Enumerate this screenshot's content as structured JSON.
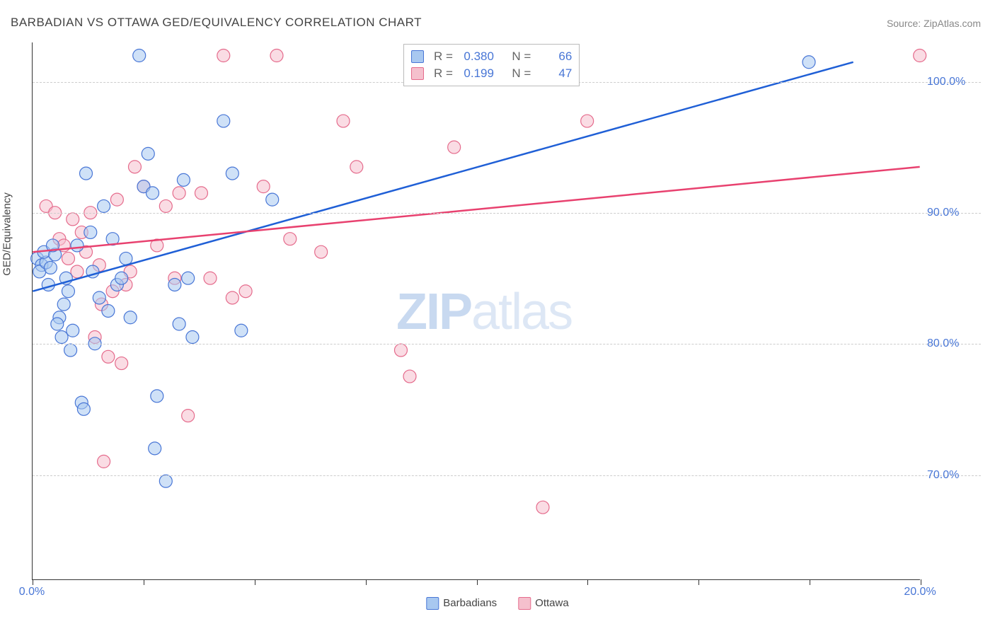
{
  "title": "BARBADIAN VS OTTAWA GED/EQUIVALENCY CORRELATION CHART",
  "source": "Source: ZipAtlas.com",
  "y_axis_label": "GED/Equivalency",
  "watermark_zip": "ZIP",
  "watermark_atlas": "atlas",
  "chart": {
    "type": "scatter",
    "background_color": "#ffffff",
    "grid_color": "#cccccc",
    "axis_color": "#333333",
    "xlim": [
      0,
      20
    ],
    "ylim": [
      62,
      103
    ],
    "x_ticks": [
      0,
      2.5,
      5,
      7.5,
      10,
      12.5,
      15,
      17.5,
      20
    ],
    "x_tick_labels": {
      "0": "0.0%",
      "20": "20.0%"
    },
    "y_gridlines": [
      70,
      80,
      90,
      100
    ],
    "y_tick_labels": {
      "70": "70.0%",
      "80": "80.0%",
      "90": "90.0%",
      "100": "100.0%"
    },
    "marker_radius": 9,
    "marker_opacity": 0.55,
    "line_width": 2.5,
    "series": [
      {
        "name": "Barbadians",
        "color_fill": "#a8c8f0",
        "color_stroke": "#4876d6",
        "line_color": "#1f5fd6",
        "r_value": "0.380",
        "n_value": "66",
        "trend_line": {
          "x1": 0,
          "y1": 84,
          "x2": 18.5,
          "y2": 101.5
        },
        "points": [
          [
            0.1,
            86.5
          ],
          [
            0.2,
            86.0
          ],
          [
            0.15,
            85.5
          ],
          [
            0.3,
            86.2
          ],
          [
            0.25,
            87.0
          ],
          [
            0.4,
            85.8
          ],
          [
            0.35,
            84.5
          ],
          [
            0.5,
            86.8
          ],
          [
            0.45,
            87.5
          ],
          [
            0.6,
            82.0
          ],
          [
            0.55,
            81.5
          ],
          [
            0.7,
            83.0
          ],
          [
            0.65,
            80.5
          ],
          [
            0.8,
            84.0
          ],
          [
            0.75,
            85.0
          ],
          [
            0.9,
            81.0
          ],
          [
            0.85,
            79.5
          ],
          [
            1.0,
            87.5
          ],
          [
            1.1,
            75.5
          ],
          [
            1.15,
            75.0
          ],
          [
            1.3,
            88.5
          ],
          [
            1.35,
            85.5
          ],
          [
            1.2,
            93.0
          ],
          [
            1.4,
            80.0
          ],
          [
            1.5,
            83.5
          ],
          [
            1.6,
            90.5
          ],
          [
            1.7,
            82.5
          ],
          [
            1.8,
            88.0
          ],
          [
            1.9,
            84.5
          ],
          [
            2.0,
            85.0
          ],
          [
            2.1,
            86.5
          ],
          [
            2.2,
            82.0
          ],
          [
            2.4,
            102.0
          ],
          [
            2.5,
            92.0
          ],
          [
            2.6,
            94.5
          ],
          [
            2.7,
            91.5
          ],
          [
            2.75,
            72.0
          ],
          [
            2.8,
            76.0
          ],
          [
            3.0,
            69.5
          ],
          [
            3.2,
            84.5
          ],
          [
            3.4,
            92.5
          ],
          [
            3.3,
            81.5
          ],
          [
            3.5,
            85.0
          ],
          [
            3.6,
            80.5
          ],
          [
            4.3,
            97.0
          ],
          [
            4.5,
            93.0
          ],
          [
            4.7,
            81.0
          ],
          [
            5.4,
            91.0
          ],
          [
            17.5,
            101.5
          ]
        ]
      },
      {
        "name": "Ottawa",
        "color_fill": "#f5c0cd",
        "color_stroke": "#e56b8c",
        "line_color": "#e8416f",
        "r_value": "0.199",
        "n_value": "47",
        "trend_line": {
          "x1": 0,
          "y1": 87,
          "x2": 20,
          "y2": 93.5
        },
        "points": [
          [
            0.3,
            90.5
          ],
          [
            0.5,
            90.0
          ],
          [
            0.6,
            88.0
          ],
          [
            0.7,
            87.5
          ],
          [
            0.8,
            86.5
          ],
          [
            0.9,
            89.5
          ],
          [
            1.0,
            85.5
          ],
          [
            1.1,
            88.5
          ],
          [
            1.2,
            87.0
          ],
          [
            1.3,
            90.0
          ],
          [
            1.4,
            80.5
          ],
          [
            1.5,
            86.0
          ],
          [
            1.55,
            83.0
          ],
          [
            1.6,
            71.0
          ],
          [
            1.7,
            79.0
          ],
          [
            1.8,
            84.0
          ],
          [
            1.9,
            91.0
          ],
          [
            2.0,
            78.5
          ],
          [
            2.1,
            84.5
          ],
          [
            2.2,
            85.5
          ],
          [
            2.3,
            93.5
          ],
          [
            2.5,
            92.0
          ],
          [
            2.8,
            87.5
          ],
          [
            3.0,
            90.5
          ],
          [
            3.2,
            85.0
          ],
          [
            3.3,
            91.5
          ],
          [
            3.5,
            74.5
          ],
          [
            3.8,
            91.5
          ],
          [
            4.0,
            85.0
          ],
          [
            4.3,
            102.0
          ],
          [
            4.5,
            83.5
          ],
          [
            4.8,
            84.0
          ],
          [
            5.2,
            92.0
          ],
          [
            5.5,
            102.0
          ],
          [
            5.8,
            88.0
          ],
          [
            6.5,
            87.0
          ],
          [
            7.0,
            97.0
          ],
          [
            7.3,
            93.5
          ],
          [
            8.3,
            79.5
          ],
          [
            8.5,
            77.5
          ],
          [
            9.5,
            95.0
          ],
          [
            11.5,
            67.5
          ],
          [
            12.5,
            97.0
          ],
          [
            20.0,
            102.0
          ]
        ]
      }
    ]
  },
  "legend_bottom": [
    {
      "label": "Barbadians",
      "fill": "#a8c8f0",
      "stroke": "#4876d6"
    },
    {
      "label": "Ottawa",
      "fill": "#f5c0cd",
      "stroke": "#e56b8c"
    }
  ],
  "legend_top_labels": {
    "r": "R =",
    "n": "N ="
  }
}
